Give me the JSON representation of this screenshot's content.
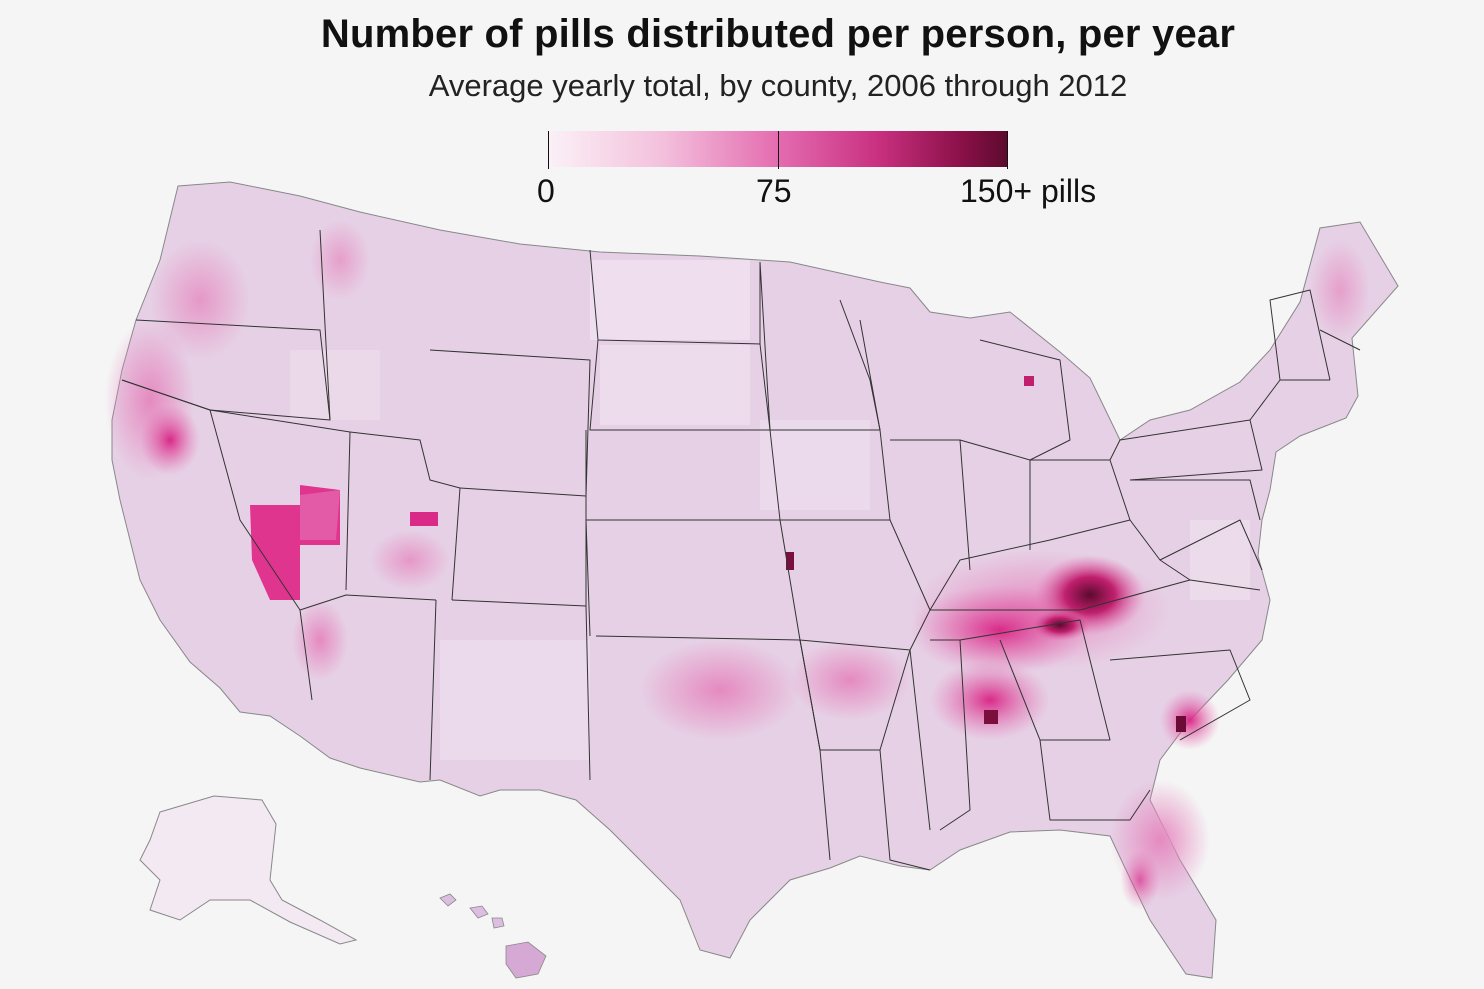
{
  "title": "Number of pills distributed per person, per year",
  "subtitle": "Average yearly total, by county, 2006 through 2012",
  "legend": {
    "labels": [
      "0",
      "75",
      "150+ pills"
    ],
    "min": 0,
    "mid": 75,
    "max": 150,
    "colors": [
      "#fbf1f7",
      "#f3c0dc",
      "#e46cb0",
      "#c8307f",
      "#8a1048",
      "#5c0a2e"
    ]
  },
  "colors": {
    "background": "#f5f5f5",
    "base_fill": "#e7d2e6",
    "hotspot_dark": "#5c0a2e",
    "hotspot_mid": "#d92a88",
    "state_border": "#333333"
  }
}
